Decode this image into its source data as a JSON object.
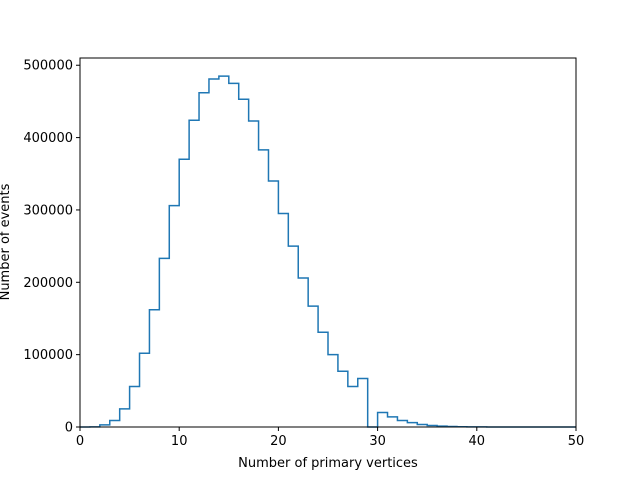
{
  "chart_data": {
    "type": "histogram",
    "xlabel": "Number of primary vertices",
    "ylabel": "Number of events",
    "xlim": [
      0,
      50
    ],
    "ylim": [
      0,
      510000
    ],
    "x_ticks": [
      "0",
      "10",
      "20",
      "30",
      "40",
      "50"
    ],
    "y_ticks": [
      "0",
      "100000",
      "200000",
      "300000",
      "400000",
      "500000"
    ],
    "grid": false,
    "line_color": "#1f77b4",
    "bin_edges": [
      0,
      1,
      2,
      3,
      4,
      5,
      6,
      7,
      8,
      9,
      10,
      11,
      12,
      13,
      14,
      15,
      16,
      17,
      18,
      19,
      20,
      21,
      22,
      23,
      24,
      25,
      26,
      27,
      28,
      29,
      30,
      31,
      32,
      33,
      34,
      35,
      36,
      37,
      38,
      39,
      40,
      41,
      42,
      43,
      44,
      45,
      46,
      47,
      48,
      49,
      50
    ],
    "counts": [
      0,
      200,
      3000,
      9000,
      25000,
      56000,
      102000,
      162000,
      233000,
      306000,
      370000,
      424000,
      462000,
      481000,
      485000,
      475000,
      453000,
      423000,
      383000,
      340000,
      295000,
      250000,
      206000,
      167000,
      131000,
      100000,
      77000,
      56000,
      67000,
      0,
      20000,
      14000,
      9000,
      6000,
      3500,
      2000,
      1200,
      700,
      400,
      200,
      100,
      60,
      30,
      15,
      8,
      4,
      2,
      1,
      0,
      0
    ]
  }
}
